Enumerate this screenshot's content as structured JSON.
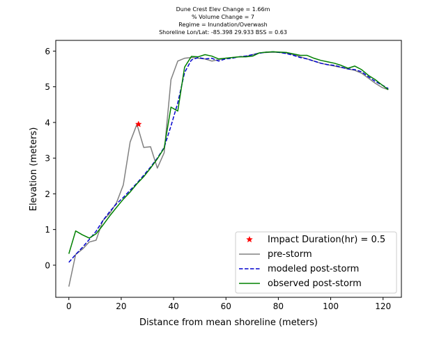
{
  "chart_data": {
    "type": "line",
    "title_lines": [
      "Dune Crest Elev Change = 1.66m",
      "% Volume Change = 7",
      "Regime = Inundation/Overwash",
      "Shoreline Lon/Lat: -85.398 29.933   BSS = 0.63"
    ],
    "xlabel": "Distance from mean shoreline (meters)",
    "ylabel": "Elevation (meters)",
    "xlim": [
      -5,
      127
    ],
    "ylim": [
      -0.9,
      6.3
    ],
    "xticks": [
      0,
      20,
      40,
      60,
      80,
      100,
      120
    ],
    "yticks": [
      0,
      1,
      2,
      3,
      4,
      5,
      6
    ],
    "legend_position": "lower-right",
    "series": [
      {
        "name": "pre-storm",
        "color": "#808080",
        "style": "solid",
        "points": [
          [
            0,
            -0.6
          ],
          [
            2.6,
            0.3
          ],
          [
            5.2,
            0.45
          ],
          [
            7.8,
            0.65
          ],
          [
            10.4,
            0.7
          ],
          [
            13,
            1.25
          ],
          [
            15.6,
            1.45
          ],
          [
            18.2,
            1.75
          ],
          [
            20.8,
            2.25
          ],
          [
            23.4,
            3.45
          ],
          [
            26,
            3.95
          ],
          [
            28.6,
            3.3
          ],
          [
            31.2,
            3.32
          ],
          [
            33.8,
            2.72
          ],
          [
            36.4,
            3.15
          ],
          [
            39,
            5.2
          ],
          [
            41.6,
            5.72
          ],
          [
            44.2,
            5.8
          ],
          [
            46.8,
            5.82
          ],
          [
            49.4,
            5.8
          ],
          [
            52,
            5.78
          ],
          [
            54.6,
            5.72
          ],
          [
            57.2,
            5.76
          ],
          [
            59.8,
            5.8
          ],
          [
            62.4,
            5.82
          ],
          [
            65,
            5.84
          ],
          [
            67.6,
            5.85
          ],
          [
            70.2,
            5.9
          ],
          [
            72.8,
            5.95
          ],
          [
            75.4,
            5.96
          ],
          [
            78,
            5.97
          ],
          [
            80.6,
            5.96
          ],
          [
            83.2,
            5.94
          ],
          [
            85.8,
            5.9
          ],
          [
            88.4,
            5.84
          ],
          [
            91,
            5.78
          ],
          [
            93.6,
            5.72
          ],
          [
            96.2,
            5.66
          ],
          [
            98.8,
            5.62
          ],
          [
            101.4,
            5.58
          ],
          [
            104,
            5.54
          ],
          [
            106.6,
            5.5
          ],
          [
            109.2,
            5.46
          ],
          [
            111.8,
            5.38
          ],
          [
            114.4,
            5.24
          ],
          [
            117,
            5.1
          ],
          [
            119.6,
            4.98
          ],
          [
            122,
            4.92
          ]
        ]
      },
      {
        "name": "modeled post-storm",
        "color": "#0000cd",
        "style": "dashed",
        "points": [
          [
            0,
            0.08
          ],
          [
            2.6,
            0.3
          ],
          [
            5.2,
            0.5
          ],
          [
            7.8,
            0.72
          ],
          [
            10.4,
            0.95
          ],
          [
            13,
            1.25
          ],
          [
            15.6,
            1.5
          ],
          [
            18.2,
            1.72
          ],
          [
            20.8,
            1.9
          ],
          [
            23.4,
            2.1
          ],
          [
            26,
            2.3
          ],
          [
            28.6,
            2.52
          ],
          [
            31.2,
            2.75
          ],
          [
            33.8,
            3.0
          ],
          [
            36.4,
            3.3
          ],
          [
            39,
            3.9
          ],
          [
            41.6,
            4.55
          ],
          [
            44.2,
            5.4
          ],
          [
            46.8,
            5.75
          ],
          [
            49.4,
            5.82
          ],
          [
            52,
            5.78
          ],
          [
            54.6,
            5.8
          ],
          [
            57.2,
            5.72
          ],
          [
            59.8,
            5.78
          ],
          [
            62.4,
            5.8
          ],
          [
            65,
            5.84
          ],
          [
            67.6,
            5.86
          ],
          [
            70.2,
            5.9
          ],
          [
            72.8,
            5.94
          ],
          [
            75.4,
            5.97
          ],
          [
            78,
            5.98
          ],
          [
            80.6,
            5.96
          ],
          [
            83.2,
            5.93
          ],
          [
            85.8,
            5.88
          ],
          [
            88.4,
            5.82
          ],
          [
            91,
            5.78
          ],
          [
            93.6,
            5.72
          ],
          [
            96.2,
            5.66
          ],
          [
            98.8,
            5.62
          ],
          [
            101.4,
            5.6
          ],
          [
            104,
            5.55
          ],
          [
            106.6,
            5.5
          ],
          [
            109.2,
            5.48
          ],
          [
            111.8,
            5.42
          ],
          [
            114.4,
            5.28
          ],
          [
            117,
            5.15
          ],
          [
            119.6,
            5.05
          ],
          [
            122,
            4.95
          ]
        ]
      },
      {
        "name": "observed post-storm",
        "color": "#008000",
        "style": "solid",
        "points": [
          [
            0,
            0.32
          ],
          [
            2.6,
            0.96
          ],
          [
            5.2,
            0.85
          ],
          [
            7.8,
            0.76
          ],
          [
            10.4,
            0.88
          ],
          [
            13,
            1.12
          ],
          [
            15.6,
            1.38
          ],
          [
            18.2,
            1.62
          ],
          [
            20.8,
            1.85
          ],
          [
            23.4,
            2.05
          ],
          [
            26,
            2.28
          ],
          [
            28.6,
            2.48
          ],
          [
            31.2,
            2.72
          ],
          [
            33.8,
            2.98
          ],
          [
            36.4,
            3.28
          ],
          [
            39,
            4.43
          ],
          [
            41.6,
            4.32
          ],
          [
            44.2,
            5.55
          ],
          [
            46.8,
            5.85
          ],
          [
            49.4,
            5.84
          ],
          [
            52,
            5.9
          ],
          [
            54.6,
            5.86
          ],
          [
            57.2,
            5.78
          ],
          [
            59.8,
            5.8
          ],
          [
            62.4,
            5.82
          ],
          [
            65,
            5.84
          ],
          [
            67.6,
            5.84
          ],
          [
            70.2,
            5.86
          ],
          [
            72.8,
            5.95
          ],
          [
            75.4,
            5.97
          ],
          [
            78,
            5.98
          ],
          [
            80.6,
            5.97
          ],
          [
            83.2,
            5.96
          ],
          [
            85.8,
            5.92
          ],
          [
            88.4,
            5.88
          ],
          [
            91,
            5.88
          ],
          [
            93.6,
            5.8
          ],
          [
            96.2,
            5.74
          ],
          [
            98.8,
            5.7
          ],
          [
            101.4,
            5.66
          ],
          [
            104,
            5.6
          ],
          [
            106.6,
            5.52
          ],
          [
            109.2,
            5.58
          ],
          [
            111.8,
            5.48
          ],
          [
            114.4,
            5.32
          ],
          [
            117,
            5.2
          ],
          [
            119.6,
            5.05
          ],
          [
            122,
            4.92
          ]
        ]
      }
    ],
    "markers": [
      {
        "name": "Impact Duration(hr) = 0.5",
        "x": 26.6,
        "y": 3.95,
        "color": "#ff0000",
        "symbol": "star"
      }
    ]
  }
}
